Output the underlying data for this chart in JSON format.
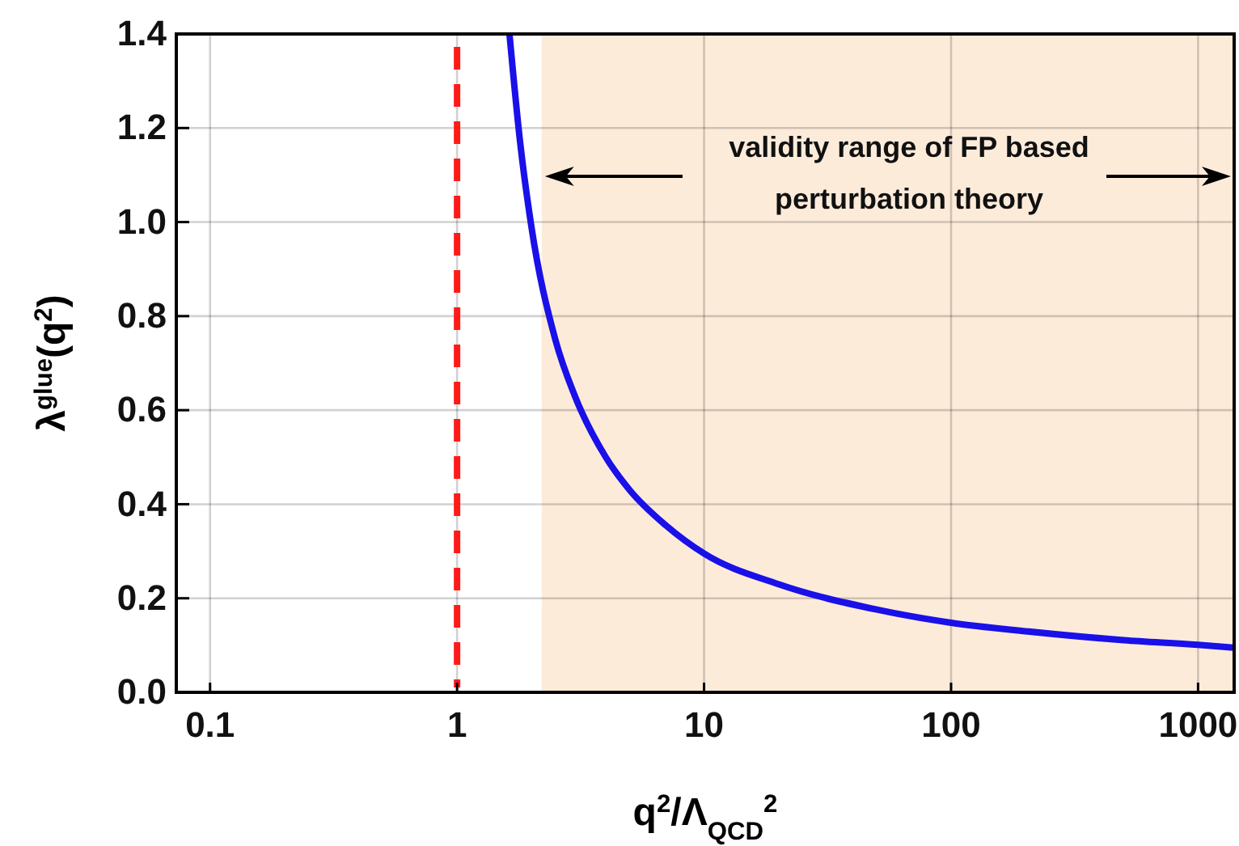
{
  "chart_data": {
    "type": "line",
    "xlabel": "q$^{2}$/Λ$_{QCD}$$^{2}$",
    "ylabel": "λ$^{glue}$(q$^{2}$)",
    "log": "x",
    "xlim": [
      0.073,
      1400
    ],
    "xticks": [
      0.1,
      1,
      10,
      100,
      1000
    ],
    "ylim": [
      0,
      1.4
    ],
    "yticks": [
      {
        "value": 0,
        "label": "0.0"
      },
      0.2,
      0.4,
      0.6,
      0.8,
      {
        "value": 1,
        "label": "1.0"
      },
      1.2,
      1.4
    ],
    "grid": true,
    "series": [
      {
        "color": "#1a10e8",
        "x": [
          1.63,
          1.8,
          2,
          2.5,
          3,
          4,
          5,
          7,
          10,
          20,
          50,
          100,
          200,
          500,
          1000,
          1400
        ],
        "values": [
          1.4,
          1.17,
          0.99,
          0.75,
          0.63,
          0.5,
          0.43,
          0.355,
          0.295,
          0.23,
          0.176,
          0.148,
          0.13,
          0.111,
          0.101,
          0.095
        ]
      }
    ],
    "ref_lines": [
      {
        "axis": "x",
        "value": 1,
        "color": "#ff1a1a",
        "line_style": "dashed"
      }
    ],
    "bands": [
      {
        "axis": "x",
        "from": 2.2,
        "to": 1400,
        "color": "#fdebda"
      }
    ],
    "annotations": [
      "validity range of FP based perturbation theory"
    ]
  }
}
